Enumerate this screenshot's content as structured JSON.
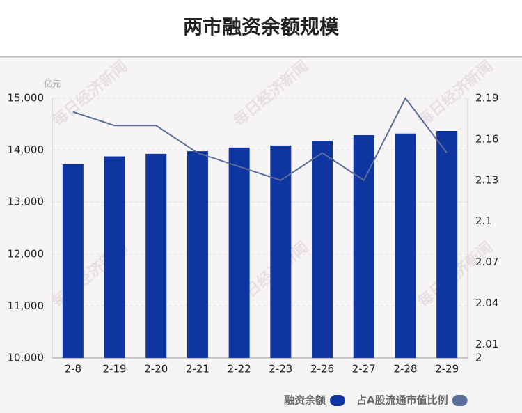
{
  "chart_data": {
    "type": "bar_line",
    "title": "两市融资余额规模",
    "y_unit": "亿元",
    "watermark": "每日经济新闻",
    "categories": [
      "2-8",
      "2-19",
      "2-20",
      "2-21",
      "2-22",
      "2-23",
      "2-26",
      "2-27",
      "2-28",
      "2-29"
    ],
    "series": [
      {
        "name": "融资余额",
        "type": "bar",
        "color": "#0e35a0",
        "values": [
          13730,
          13880,
          13930,
          13980,
          14050,
          14090,
          14180,
          14290,
          14320,
          14370
        ]
      },
      {
        "name": "占A股流通市值比例",
        "type": "line",
        "axis": "y2",
        "color": "#5a6c9a",
        "values": [
          2.18,
          2.17,
          2.17,
          2.15,
          2.14,
          2.13,
          2.15,
          2.13,
          2.19,
          2.15
        ]
      }
    ],
    "ylim": [
      10000,
      15000
    ],
    "yticks": [
      {
        "value": 10000,
        "label": "10,000"
      },
      {
        "value": 11000,
        "label": "11,000"
      },
      {
        "value": 12000,
        "label": "12,000"
      },
      {
        "value": 13000,
        "label": "13,000"
      },
      {
        "value": 14000,
        "label": "14,000"
      },
      {
        "value": 15000,
        "label": "15,000"
      }
    ],
    "y2lim": [
      2,
      2.19
    ],
    "y2ticks": [
      2,
      2.01,
      2.04,
      2.07,
      2.1,
      2.13,
      2.16,
      2.19
    ],
    "grid": true,
    "legend": "bottom-right"
  }
}
